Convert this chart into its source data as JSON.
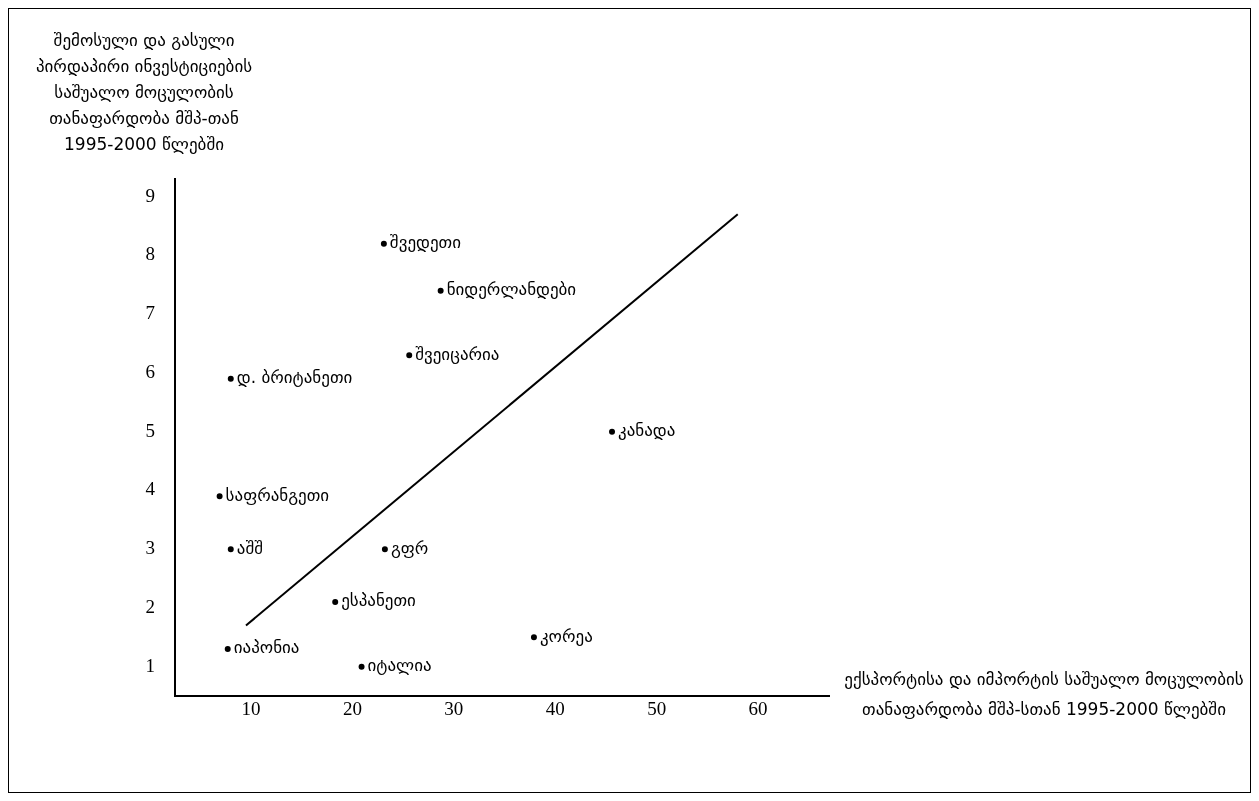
{
  "chart_data": {
    "type": "scatter",
    "ylabel": "შემოსული და გასული პირდაპირი ინვესტიციების საშუალო მოცულობის თანაფარდობა მშპ-თან 1995-2000 წლებში",
    "xlabel": "ექსპორტისა და იმპორტის საშუალო მოცულობის თანაფარდობა მშპ-სთან 1995-2000 წლებში",
    "xlim": [
      2.5,
      67
    ],
    "ylim": [
      0.5,
      9.3
    ],
    "xticks": [
      10,
      20,
      30,
      40,
      50,
      60
    ],
    "yticks": [
      1,
      2,
      3,
      4,
      5,
      6,
      7,
      8,
      9
    ],
    "grid": false,
    "legend": false,
    "series": [
      {
        "color": "#000000",
        "marker": "circle",
        "x": [
          23.1,
          28.7,
          25.6,
          8.0,
          45.6,
          6.9,
          8.0,
          23.2,
          18.3,
          37.9,
          7.7,
          20.9
        ],
        "values": [
          8.2,
          7.4,
          6.3,
          5.9,
          5.0,
          3.9,
          3.0,
          3.0,
          2.1,
          1.5,
          1.3,
          1.0
        ],
        "value_labels": [
          "შვედეთი",
          "ნიდერლანდები",
          "შვეიცარია",
          "დ. ბრიტანეთი",
          "კანადა",
          "საფრანგეთი",
          "აშშ",
          "გფრ",
          "ესპანეთი",
          "კორეა",
          "იაპონია",
          "იტალია"
        ]
      },
      {
        "type": "line",
        "color": "#000000",
        "x": [
          9.5,
          58
        ],
        "values": [
          1.7,
          8.7
        ],
        "line_style": "solid"
      }
    ]
  }
}
